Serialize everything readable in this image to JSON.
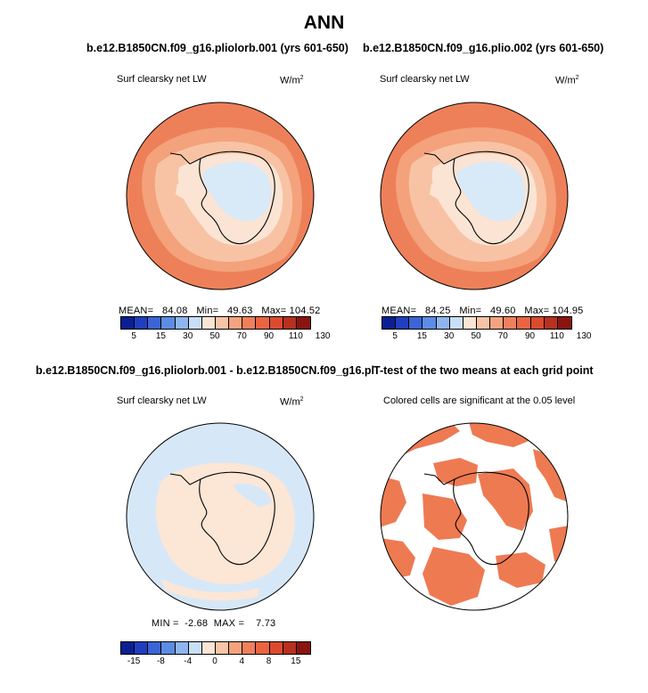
{
  "title": "ANN",
  "panels": {
    "p1": {
      "header": "b.e12.B1850CN.f09_g16.pliolorb.001 (yrs 601-650)",
      "var_label": "Surf clearsky net LW",
      "units": "W/m",
      "units_sup": "2",
      "mean_label": "MEAN=",
      "mean": "84.08",
      "min_label": "Min=",
      "min": "49.63",
      "max_label": "Max=",
      "max": "104.52"
    },
    "p2": {
      "header": "b.e12.B1850CN.f09_g16.plio.002 (yrs 601-650)",
      "var_label": "Surf clearsky net LW",
      "units": "W/m",
      "units_sup": "2",
      "mean_label": "MEAN=",
      "mean": "84.25",
      "min_label": "Min=",
      "min": "49.60",
      "max_label": "Max=",
      "max": "104.95"
    },
    "p3": {
      "header": "b.e12.B1850CN.f09_g16.pliolorb.001 - b.e12.B1850CN.f09_g16.plio.002",
      "var_label": "Surf clearsky net LW",
      "units": "W/m",
      "units_sup": "2",
      "min_label": "MIN =",
      "min": "-2.68",
      "max_label": "MAX =",
      "max": "7.73"
    },
    "p4": {
      "header": "T-test of the two means at each grid point",
      "subtitle": "Colored cells are significant at the 0.05 level"
    }
  },
  "colorbar_abs": {
    "colors": [
      "#0a1f94",
      "#1f3fc0",
      "#3b64d6",
      "#5c8ce4",
      "#8fb5ef",
      "#c9dff7",
      "#fbe4d4",
      "#f8c4a6",
      "#f5a37e",
      "#f0805c",
      "#ea6441",
      "#dc4a2e",
      "#b8301f",
      "#8a1410"
    ],
    "ticks": [
      "5",
      "15",
      "30",
      "50",
      "70",
      "90",
      "110",
      "130"
    ]
  },
  "colorbar_diff": {
    "colors": [
      "#0a1f94",
      "#1f3fc0",
      "#3b64d6",
      "#5c8ce4",
      "#8fb5ef",
      "#c9dff7",
      "#fbe4d4",
      "#f8c4a6",
      "#f5a37e",
      "#f0805c",
      "#ea6441",
      "#dc4a2e",
      "#b8301f",
      "#8a1410"
    ],
    "ticks": [
      "-15",
      "-8",
      "-4",
      "0",
      "4",
      "8",
      "15"
    ]
  },
  "map_colors": {
    "ocean_outer": "#ee8059",
    "ocean_mid": "#f3a27c",
    "sea_ice": "#f8c3a4",
    "ice_edge": "#fbe4d4",
    "interior": "#d8e9f8",
    "diff_background": "#d6e8f8",
    "diff_positive": "#fce6d6",
    "significant": "#ee7a52"
  }
}
